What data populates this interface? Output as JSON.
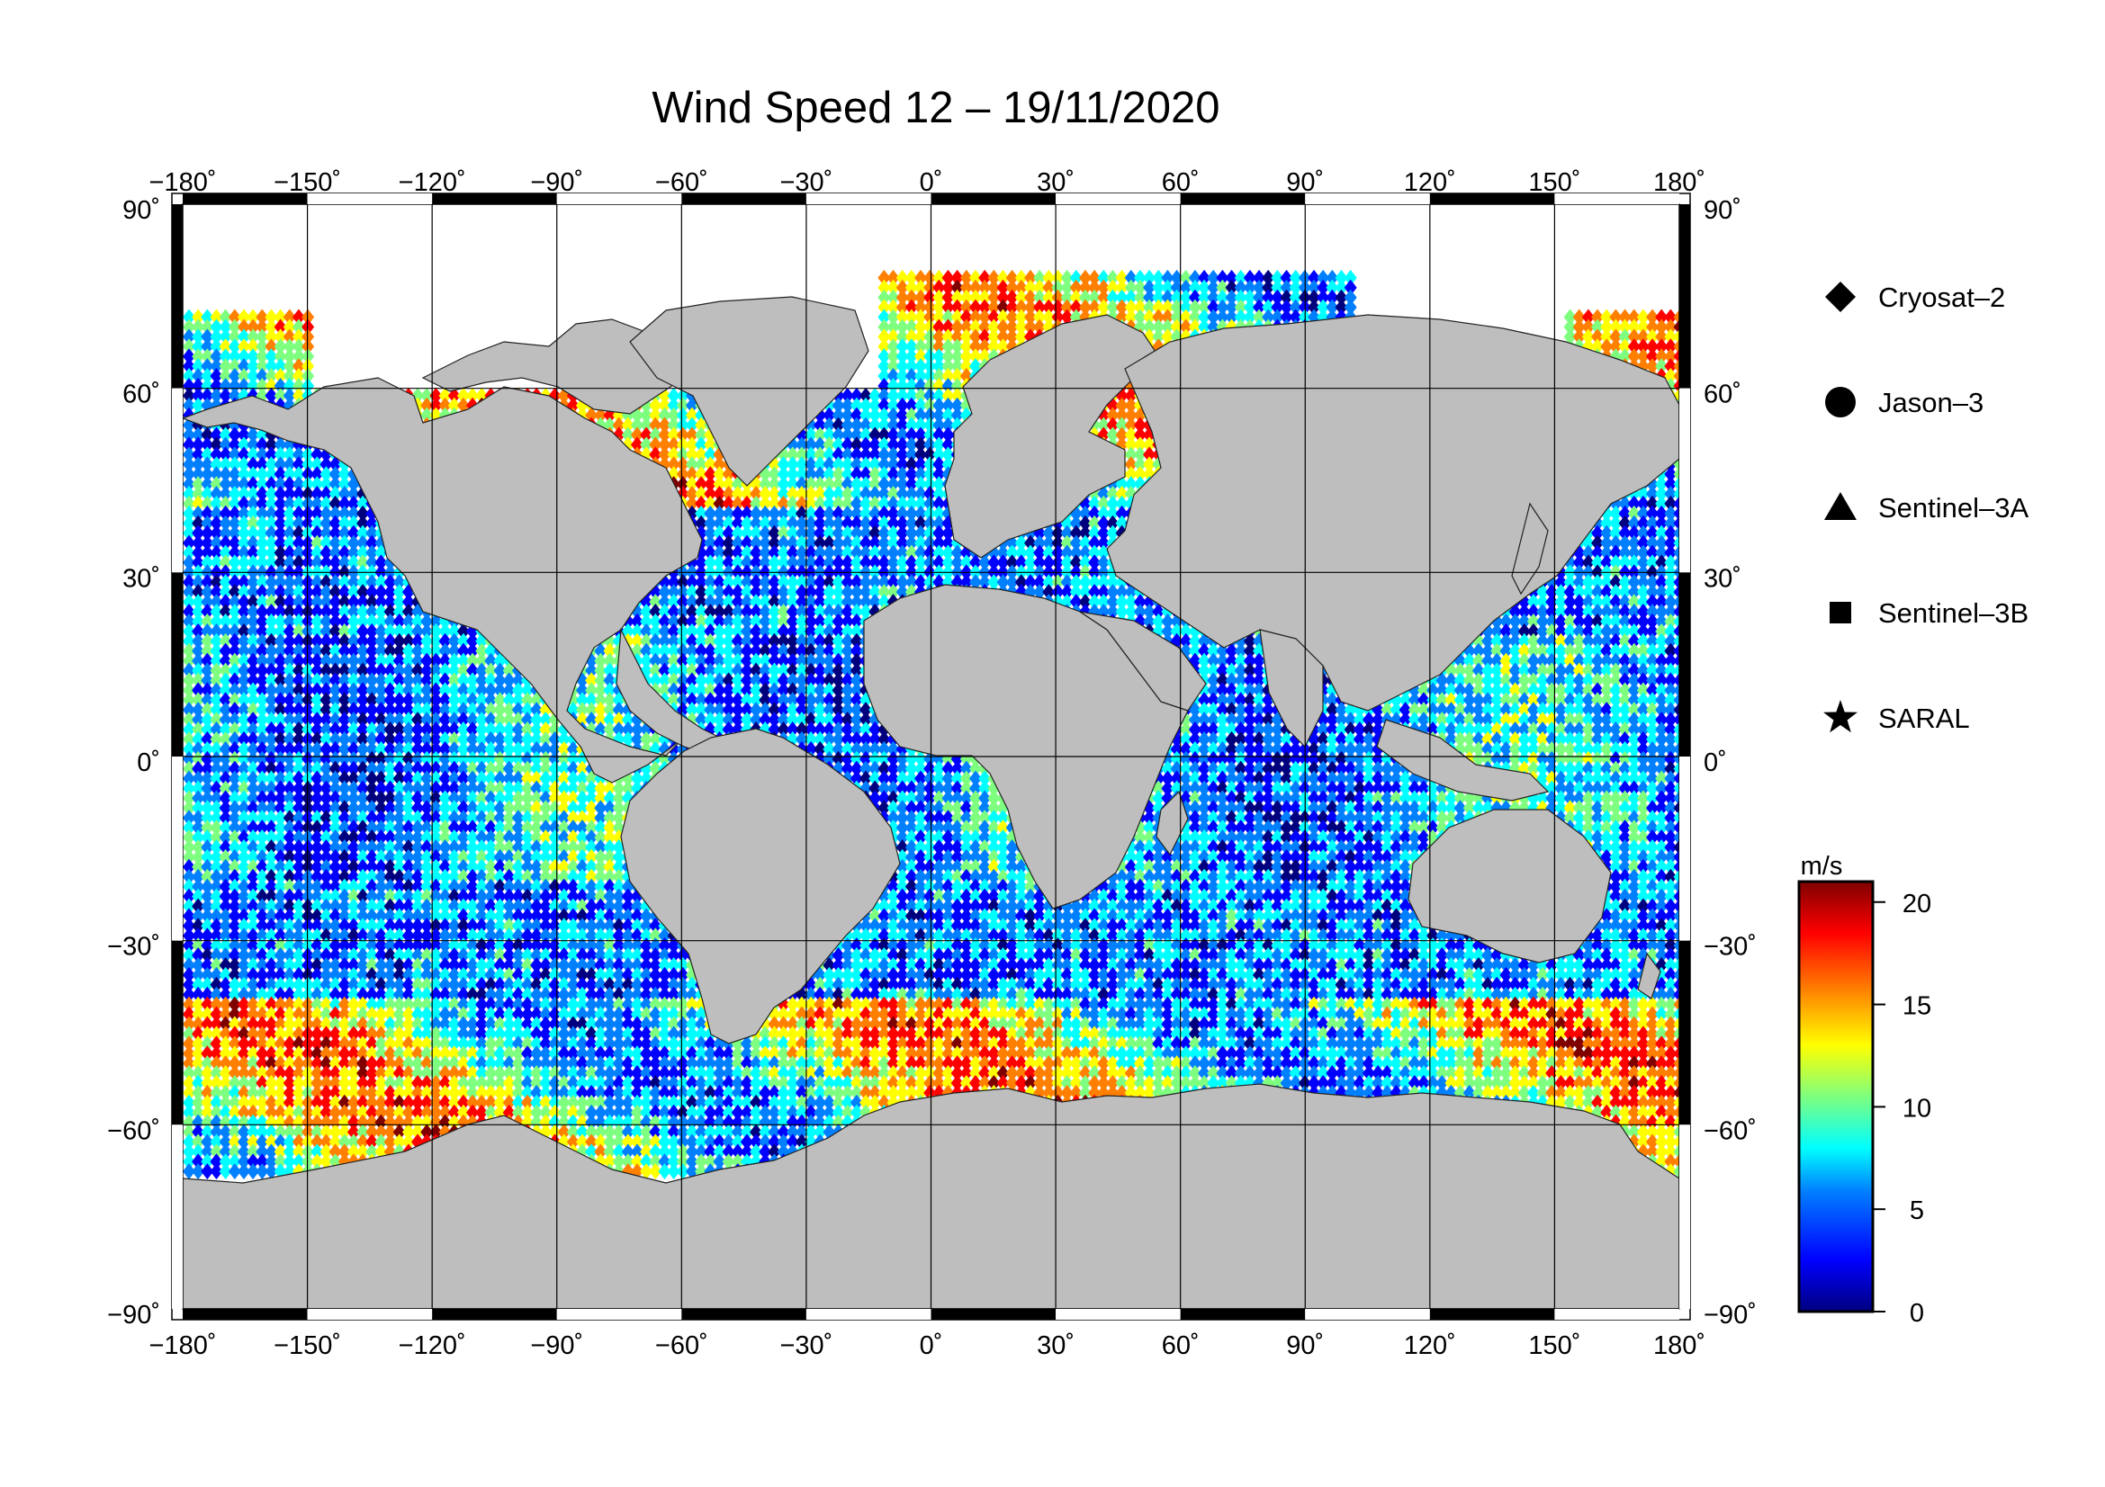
{
  "title": "Wind Speed 12 – 19/11/2020",
  "axes": {
    "lon_ticks": [
      "−180˚",
      "−150˚",
      "−120˚",
      "−90˚",
      "−60˚",
      "−30˚",
      "0˚",
      "30˚",
      "60˚",
      "90˚",
      "120˚",
      "150˚",
      "180˚"
    ],
    "lat_ticks": [
      "90˚",
      "60˚",
      "30˚",
      "0˚",
      "−30˚",
      "−60˚",
      "−90˚"
    ]
  },
  "legend": {
    "items": [
      {
        "label": "Cryosat–2",
        "symbol": "diamond"
      },
      {
        "label": "Jason–3",
        "symbol": "circle"
      },
      {
        "label": "Sentinel–3A",
        "symbol": "triangle"
      },
      {
        "label": "Sentinel–3B",
        "symbol": "square"
      },
      {
        "label": "SARAL",
        "symbol": "star"
      }
    ]
  },
  "colorbar": {
    "unit": "m/s",
    "ticks": [
      "20",
      "15",
      "10",
      "5",
      "0"
    ],
    "range": [
      0,
      21
    ],
    "colors": [
      "#00007f",
      "#0000ff",
      "#007fff",
      "#00ffff",
      "#7fff7f",
      "#ffff00",
      "#ff7f00",
      "#ff0000",
      "#7f0000"
    ]
  },
  "map": {
    "land_color": "#bebebe",
    "ice_color": "#ffffff",
    "extent": {
      "lon": [
        -180,
        180
      ],
      "lat": [
        -90,
        90
      ]
    }
  }
}
